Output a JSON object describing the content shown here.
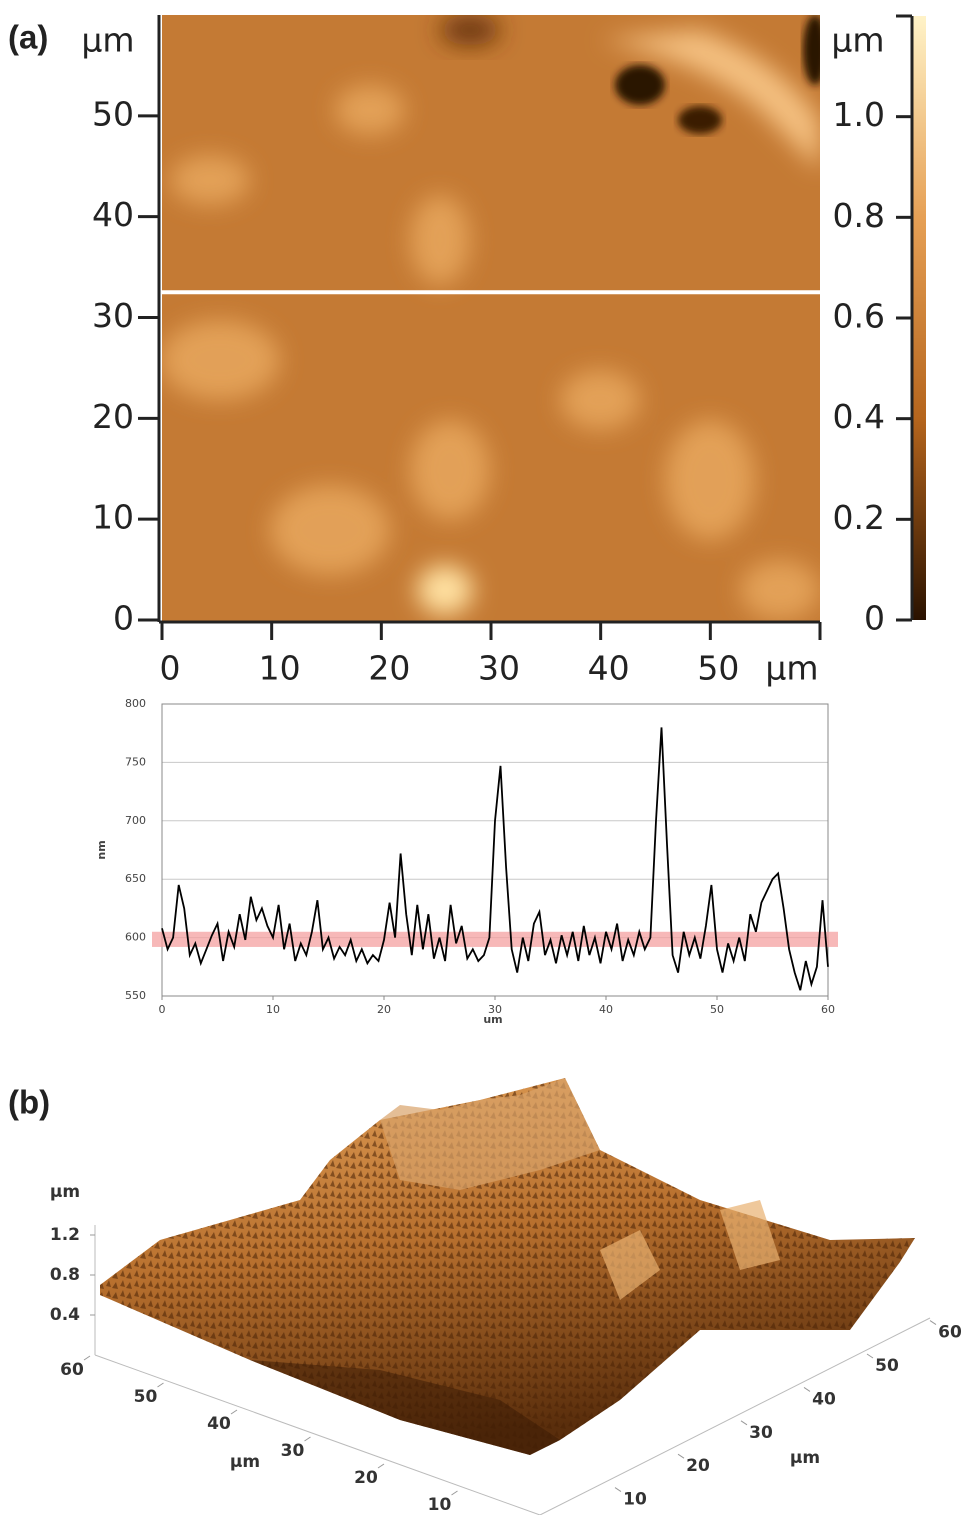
{
  "chart_data": [
    {
      "type": "heatmap",
      "panel_label": "(a)",
      "xlabel": "μm",
      "ylabel": "μm",
      "xlim": [
        0,
        60
      ],
      "ylim": [
        0,
        60
      ],
      "xticks": [
        0,
        10,
        20,
        30,
        40,
        50
      ],
      "yticks": [
        0,
        10,
        20,
        30,
        40,
        50
      ],
      "profile_y": 32.5,
      "profile_color": "#ffffff",
      "colorbar": {
        "label": "μm",
        "lim": [
          0,
          1.2
        ],
        "ticks": [
          0,
          0.2,
          0.4,
          0.6,
          0.8,
          {
            "value": 1,
            "label": "1.0"
          }
        ],
        "colors": [
          "#2a1200",
          "#b5651d",
          "#e6a055",
          "#fff3c8"
        ]
      }
    },
    {
      "type": "line",
      "xlabel": "um",
      "ylabel": "nm",
      "xlim": [
        0,
        60
      ],
      "ylim": [
        550,
        800
      ],
      "xticks": [
        0,
        10,
        20,
        30,
        40,
        50,
        60
      ],
      "yticks": [
        550,
        600,
        650,
        700,
        750,
        800
      ],
      "grid": true,
      "color": "#000000",
      "band": {
        "lim": [
          592,
          605
        ],
        "color": "#f4a0a0"
      },
      "x": [
        0,
        0.5,
        1,
        1.5,
        2,
        2.5,
        3,
        3.5,
        4,
        4.5,
        5,
        5.5,
        6,
        6.5,
        7,
        7.5,
        8,
        8.5,
        9,
        9.5,
        10,
        10.5,
        11,
        11.5,
        12,
        12.5,
        13,
        13.5,
        14,
        14.5,
        15,
        15.5,
        16,
        16.5,
        17,
        17.5,
        18,
        18.5,
        19,
        19.5,
        20,
        20.5,
        21,
        21.5,
        22,
        22.5,
        23,
        23.5,
        24,
        24.5,
        25,
        25.5,
        26,
        26.5,
        27,
        27.5,
        28,
        28.5,
        29,
        29.5,
        30,
        30.5,
        31,
        31.5,
        32,
        32.5,
        33,
        33.5,
        34,
        34.5,
        35,
        35.5,
        36,
        36.5,
        37,
        37.5,
        38,
        38.5,
        39,
        39.5,
        40,
        40.5,
        41,
        41.5,
        42,
        42.5,
        43,
        43.5,
        44,
        44.5,
        45,
        45.5,
        46,
        46.5,
        47,
        47.5,
        48,
        48.5,
        49,
        49.5,
        50,
        50.5,
        51,
        51.5,
        52,
        52.5,
        53,
        53.5,
        54,
        54.5,
        55,
        55.5,
        56,
        56.5,
        57,
        57.5,
        58,
        58.5,
        59,
        59.5,
        60
      ],
      "values": [
        608,
        590,
        600,
        645,
        625,
        585,
        595,
        578,
        590,
        602,
        612,
        580,
        605,
        592,
        620,
        598,
        635,
        615,
        625,
        610,
        600,
        628,
        590,
        612,
        580,
        595,
        585,
        605,
        632,
        590,
        600,
        582,
        592,
        585,
        598,
        580,
        590,
        578,
        585,
        580,
        598,
        630,
        600,
        672,
        620,
        585,
        628,
        590,
        620,
        582,
        600,
        580,
        628,
        595,
        610,
        582,
        590,
        580,
        585,
        600,
        700,
        747,
        660,
        590,
        570,
        600,
        580,
        612,
        622,
        585,
        598,
        578,
        602,
        585,
        605,
        580,
        610,
        585,
        600,
        578,
        605,
        590,
        612,
        580,
        598,
        585,
        605,
        590,
        600,
        700,
        780,
        680,
        585,
        570,
        605,
        585,
        600,
        582,
        610,
        645,
        590,
        570,
        595,
        580,
        600,
        580,
        620,
        605,
        630,
        640,
        650,
        655,
        625,
        590,
        570,
        555,
        580,
        560,
        575,
        632,
        575
      ]
    },
    {
      "type": "surface",
      "panel_label": "(b)",
      "zlabel": "μm",
      "zticks": [
        0.4,
        0.8,
        1.2
      ],
      "xlabel": "μm",
      "xticks": [
        10,
        20,
        30,
        40,
        50,
        60
      ],
      "ylabel": "μm",
      "yticks": [
        10,
        20,
        30,
        40,
        50,
        60
      ]
    }
  ]
}
